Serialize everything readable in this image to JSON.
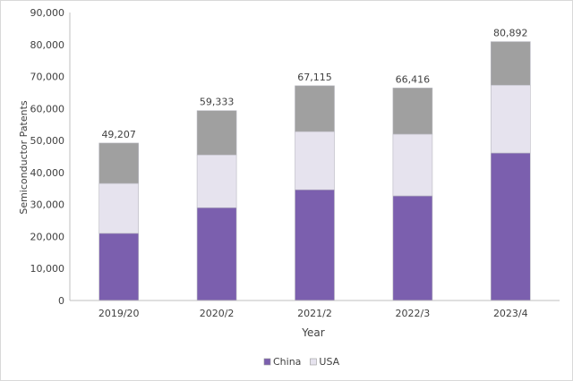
{
  "chart_data": {
    "type": "bar",
    "stacked": true,
    "categories": [
      "2019/20",
      "2020/2",
      "2021/2",
      "2022/3",
      "2023/4"
    ],
    "series": [
      {
        "name": "China",
        "color": "#7b5fae",
        "values": [
          21000,
          29000,
          34600,
          32700,
          46100
        ]
      },
      {
        "name": "USA",
        "color": "#e6e3ee",
        "values": [
          15600,
          16500,
          18200,
          19300,
          21200
        ]
      },
      {
        "color": "#a0a0a0",
        "values": [
          12607,
          13833,
          14315,
          14416,
          13592
        ]
      }
    ],
    "totals": [
      "49,207",
      "59,333",
      "67,115",
      "66,416",
      "80,892"
    ],
    "xlabel": "Year",
    "ylabel": "Semiconductor Patents",
    "ylim": [
      0,
      90000
    ],
    "yticks": [
      "0",
      "10,000",
      "20,000",
      "30,000",
      "40,000",
      "50,000",
      "60,000",
      "70,000",
      "80,000",
      "90,000"
    ],
    "grid": false,
    "legend": "bottom"
  }
}
